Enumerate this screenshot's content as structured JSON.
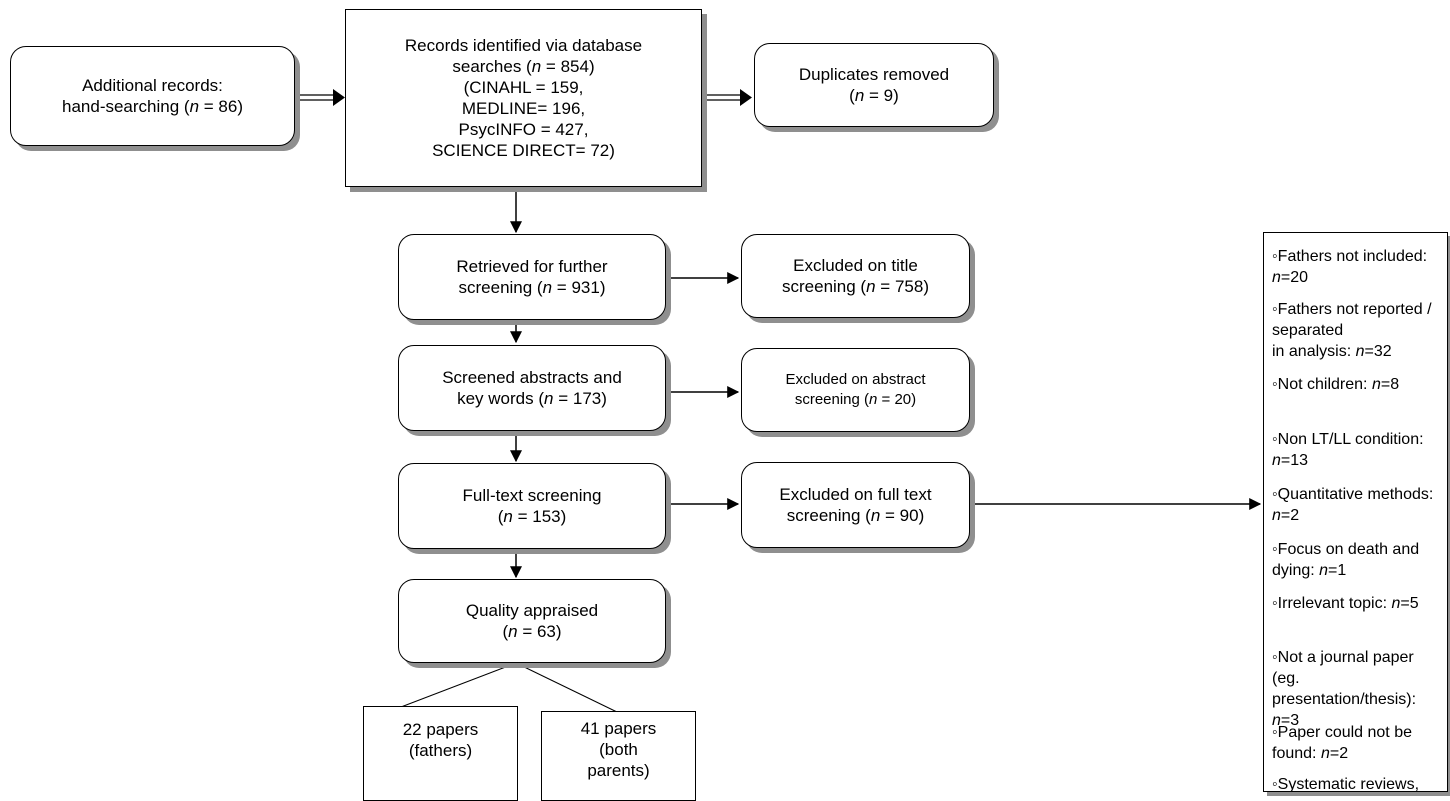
{
  "boxes": {
    "hand_searching": {
      "line1": "Additional records:",
      "line2": "hand-searching (",
      "n": "n",
      "line2_end": " = 86)"
    },
    "database": {
      "line1": "Records identified via database",
      "line2": "searches (",
      "n": "n",
      "line2_end": " = 854)",
      "line3": "(CINAHL = 159,",
      "line4": "MEDLINE= 196,",
      "line5": "PsycINFO = 427,",
      "line6": "SCIENCE DIRECT= 72)"
    },
    "duplicates": {
      "line1": "Duplicates removed",
      "line2": "(",
      "n": "n",
      "line2_end": " = 9)"
    },
    "retrieved": {
      "line1": "Retrieved for further",
      "line2": "screening (",
      "n": "n",
      "line2_end": " = 931)"
    },
    "excluded_title": {
      "line1": "Excluded on title",
      "line2": "screening (",
      "n": "n",
      "line2_end": " = 758)"
    },
    "screened_abstracts": {
      "line1": "Screened abstracts and",
      "line2": "key words (",
      "n": "n",
      "line2_end": " = 173)"
    },
    "excluded_abstract": {
      "line1": "Excluded on abstract",
      "line2": "screening (",
      "n": "n",
      "line2_end": " = 20)"
    },
    "full_text": {
      "line1": "Full-text screening",
      "line2": "(",
      "n": "n",
      "line2_end": " = 153)"
    },
    "excluded_full_text": {
      "line1": "Excluded on full text",
      "line2": "screening (",
      "n": "n",
      "line2_end": " = 90)"
    },
    "quality": {
      "line1": "Quality appraised",
      "line2": "(",
      "n": "n",
      "line2_end": " = 63)"
    },
    "papers_fathers": {
      "line1": "22 papers",
      "line2": "(fathers)"
    },
    "papers_both": {
      "line1": "41 papers",
      "line2": "(both",
      "line3": "parents)"
    }
  },
  "exclusion_reasons": [
    {
      "pre": "◦Fathers not included: ",
      "n": "n",
      "post": "=20"
    },
    {
      "pre": "◦Fathers not reported / separated",
      "pre2": "in analysis: ",
      "n": "n",
      "post": "=32"
    },
    {
      "pre": "◦Not children: ",
      "n": "n",
      "post": "=8"
    },
    {
      "pre": "◦Non LT/LL condition: ",
      "n": "n",
      "post": "=13"
    },
    {
      "pre": "◦Quantitative methods: ",
      "n": "n",
      "post": "=2"
    },
    {
      "pre": "◦Focus on death and dying: ",
      "n": "n",
      "post": "=1"
    },
    {
      "pre": "◦Irrelevant topic: ",
      "n": "n",
      "post": "=5"
    },
    {
      "pre": "◦Not a journal paper (eg.",
      "pre2": "presentation/thesis): ",
      "n": "n",
      "post": "=3"
    },
    {
      "pre": "◦Paper could not be found: ",
      "n": "n",
      "post": "=2"
    },
    {
      "pre": "◦Systematic reviews, theoretical"
    }
  ]
}
